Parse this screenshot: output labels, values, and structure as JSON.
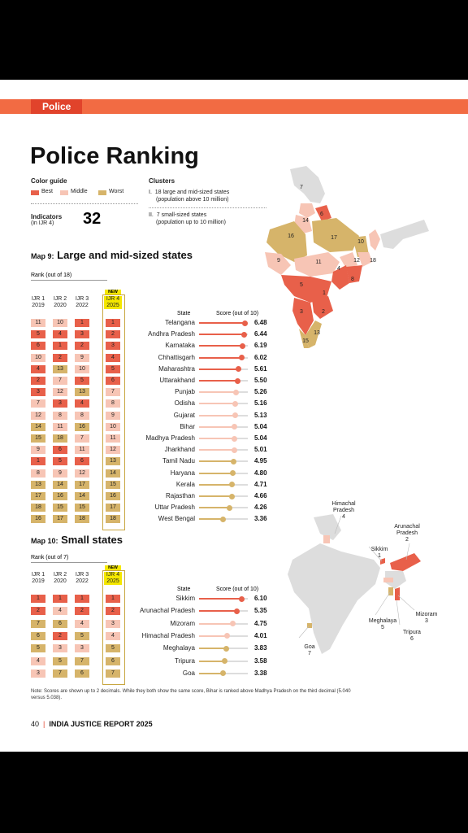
{
  "header": {
    "tag": "Police"
  },
  "title": "Police Ranking",
  "color_guide": {
    "label": "Color guide",
    "items": [
      {
        "name": "Best",
        "color": "#e8604a"
      },
      {
        "name": "Middle",
        "color": "#f7c5b5"
      },
      {
        "name": "Worst",
        "color": "#d6b46a"
      }
    ]
  },
  "indicators": {
    "label": "Indicators",
    "sublabel": "(in IJR 4)",
    "value": "32"
  },
  "clusters": {
    "label": "Clusters",
    "items": [
      {
        "num": "I.",
        "text": "18 large and mid-sized states",
        "sub": "(population above 10 million)"
      },
      {
        "num": "II.",
        "text": "7 small-sized states",
        "sub": "(population up to 10 million)"
      }
    ]
  },
  "map9": {
    "prefix": "Map 9:",
    "title": "Large and mid-sized states",
    "rank_label": "Rank (out of 18)",
    "new_badge": "NEW",
    "col_headers": [
      {
        "l1": "IJR 1",
        "l2": "2019"
      },
      {
        "l1": "IJR 2",
        "l2": "2020"
      },
      {
        "l1": "IJR 3",
        "l2": "2022"
      },
      {
        "l1": "IJR 4",
        "l2": "2025"
      }
    ],
    "state_header": "State",
    "score_header": "Score (out of 10)",
    "rows": [
      {
        "r": [
          "11",
          "10",
          "1",
          "1"
        ],
        "state": "Telangana",
        "score": "6.48"
      },
      {
        "r": [
          "5",
          "4",
          "3",
          "2"
        ],
        "state": "Andhra Pradesh",
        "score": "6.44"
      },
      {
        "r": [
          "6",
          "1",
          "2",
          "3"
        ],
        "state": "Karnataka",
        "score": "6.19"
      },
      {
        "r": [
          "10",
          "2",
          "9",
          "4"
        ],
        "state": "Chhattisgarh",
        "score": "6.02"
      },
      {
        "r": [
          "4",
          "13",
          "10",
          "5"
        ],
        "state": "Maharashtra",
        "score": "5.61"
      },
      {
        "r": [
          "2",
          "7",
          "5",
          "6"
        ],
        "state": "Uttarakhand",
        "score": "5.50"
      },
      {
        "r": [
          "3",
          "12",
          "13",
          "7"
        ],
        "state": "Punjab",
        "score": "5.26"
      },
      {
        "r": [
          "7",
          "3",
          "4",
          "8"
        ],
        "state": "Odisha",
        "score": "5.16"
      },
      {
        "r": [
          "12",
          "8",
          "8",
          "9"
        ],
        "state": "Gujarat",
        "score": "5.13"
      },
      {
        "r": [
          "14",
          "11",
          "16",
          "10"
        ],
        "state": "Bihar",
        "score": "5.04"
      },
      {
        "r": [
          "15",
          "18",
          "7",
          "11"
        ],
        "state": "Madhya Pradesh",
        "score": "5.04"
      },
      {
        "r": [
          "9",
          "6",
          "11",
          "12"
        ],
        "state": "Jharkhand",
        "score": "5.01"
      },
      {
        "r": [
          "1",
          "5",
          "6",
          "13"
        ],
        "state": "Tamil Nadu",
        "score": "4.95"
      },
      {
        "r": [
          "8",
          "9",
          "12",
          "14"
        ],
        "state": "Haryana",
        "score": "4.80"
      },
      {
        "r": [
          "13",
          "14",
          "17",
          "15"
        ],
        "state": "Kerala",
        "score": "4.71"
      },
      {
        "r": [
          "17",
          "16",
          "14",
          "16"
        ],
        "state": "Rajasthan",
        "score": "4.66"
      },
      {
        "r": [
          "18",
          "15",
          "15",
          "17"
        ],
        "state": "Uttar Pradesh",
        "score": "4.26"
      },
      {
        "r": [
          "16",
          "17",
          "18",
          "18"
        ],
        "state": "West Bengal",
        "score": "3.36"
      }
    ],
    "map_labels": [
      "7",
      "6",
      "14",
      "16",
      "17",
      "10",
      "9",
      "11",
      "12",
      "18",
      "4",
      "8",
      "1",
      "5",
      "2",
      "3",
      "13",
      "15"
    ]
  },
  "map10": {
    "prefix": "Map 10:",
    "title": "Small states",
    "rank_label": "Rank (out of 7)",
    "new_badge": "NEW",
    "col_headers": [
      {
        "l1": "IJR 1",
        "l2": "2019"
      },
      {
        "l1": "IJR 2",
        "l2": "2020"
      },
      {
        "l1": "IJR 3",
        "l2": "2022"
      },
      {
        "l1": "IJR 4",
        "l2": "2025"
      }
    ],
    "state_header": "State",
    "score_header": "Score (out of 10)",
    "rows": [
      {
        "r": [
          "1",
          "1",
          "1",
          "1"
        ],
        "state": "Sikkim",
        "score": "6.10"
      },
      {
        "r": [
          "2",
          "4",
          "2",
          "2"
        ],
        "state": "Arunachal Pradesh",
        "score": "5.35"
      },
      {
        "r": [
          "7",
          "6",
          "4",
          "3"
        ],
        "state": "Mizoram",
        "score": "4.75"
      },
      {
        "r": [
          "6",
          "2",
          "5",
          "4"
        ],
        "state": "Himachal Pradesh",
        "score": "4.01"
      },
      {
        "r": [
          "5",
          "3",
          "3",
          "5"
        ],
        "state": "Meghalaya",
        "score": "3.83"
      },
      {
        "r": [
          "4",
          "5",
          "7",
          "6"
        ],
        "state": "Tripura",
        "score": "3.58"
      },
      {
        "r": [
          "3",
          "7",
          "6",
          "7"
        ],
        "state": "Goa",
        "score": "3.38"
      }
    ],
    "map_labels": [
      {
        "name": "Himachal Pradesh",
        "rank": "4"
      },
      {
        "name": "Sikkim",
        "rank": "1"
      },
      {
        "name": "Arunachal Pradesh",
        "rank": "2"
      },
      {
        "name": "Mizoram",
        "rank": "3"
      },
      {
        "name": "Meghalaya",
        "rank": "5"
      },
      {
        "name": "Tripura",
        "rank": "6"
      },
      {
        "name": "Goa",
        "rank": "7"
      }
    ]
  },
  "note": "Note: Scores are shown up to 2 decimals. While they both show the same score, Bihar is ranked above Madhya Pradesh on the third decimal (5.040 versus 5.038).",
  "footer": {
    "page": "40",
    "title": "INDIA JUSTICE REPORT 2025"
  }
}
